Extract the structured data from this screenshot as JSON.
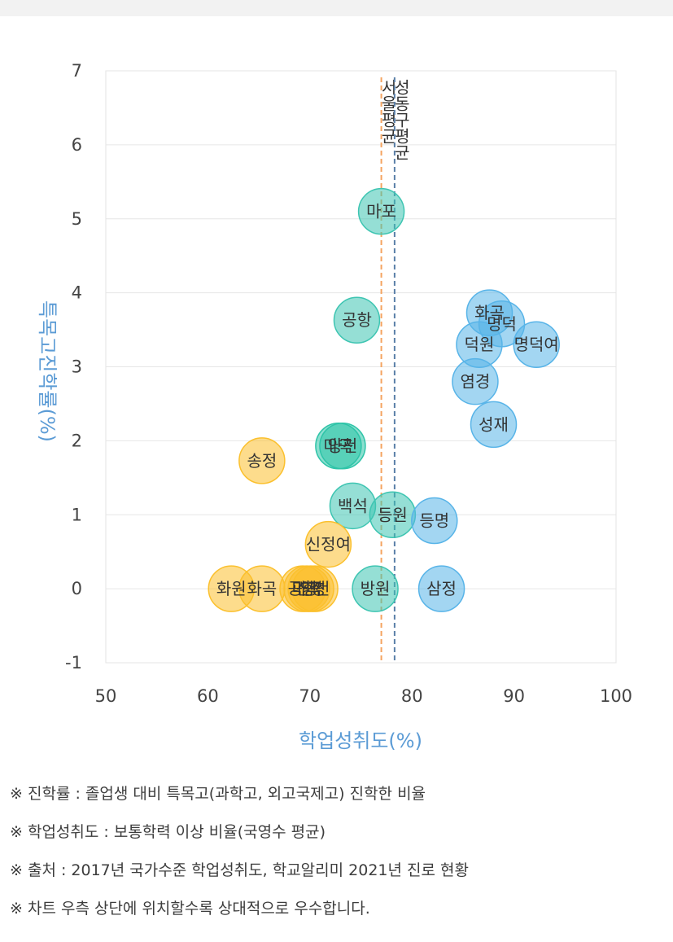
{
  "chart_data": {
    "type": "scatter",
    "xlabel": "학업성취도(%)",
    "ylabel": "특목고진학률(%)",
    "xlim": [
      50,
      100
    ],
    "ylim": [
      -1,
      7
    ],
    "xticks": [
      "50",
      "60",
      "70",
      "80",
      "90",
      "100"
    ],
    "yticks": [
      "-1",
      "0",
      "1",
      "2",
      "3",
      "4",
      "5",
      "6",
      "7"
    ],
    "grid": "horizontal",
    "reference_lines": [
      {
        "label": "서울평균",
        "x": 77,
        "color": "#f4a460"
      },
      {
        "label": "성동구평균",
        "x": 78.3,
        "color": "#5a7fa8"
      }
    ],
    "points": [
      {
        "label": "마포",
        "x": 77,
        "y": 5.1,
        "color": "#3ec5b2"
      },
      {
        "label": "공항",
        "x": 74.6,
        "y": 3.63,
        "color": "#3ec5b2"
      },
      {
        "label": "화곡",
        "x": 87.6,
        "y": 3.73,
        "color": "#58b4e8"
      },
      {
        "label": "명덕",
        "x": 88.8,
        "y": 3.58,
        "color": "#58b4e8"
      },
      {
        "label": "덕원",
        "x": 86.6,
        "y": 3.3,
        "color": "#58b4e8"
      },
      {
        "label": "명덕여",
        "x": 92.2,
        "y": 3.3,
        "color": "#58b4e8"
      },
      {
        "label": "염경",
        "x": 86.2,
        "y": 2.8,
        "color": "#58b4e8"
      },
      {
        "label": "성재",
        "x": 88,
        "y": 2.22,
        "color": "#58b4e8"
      },
      {
        "label": "마곡",
        "x": 72.8,
        "y": 1.93,
        "color": "#2ec4a8"
      },
      {
        "label": "양천",
        "x": 73.2,
        "y": 1.93,
        "color": "#2ec4a8"
      },
      {
        "label": "송정",
        "x": 65.3,
        "y": 1.73,
        "color": "#fbc02d"
      },
      {
        "label": "백석",
        "x": 74.2,
        "y": 1.12,
        "color": "#3ec5b2"
      },
      {
        "label": "등원",
        "x": 78.1,
        "y": 1.0,
        "color": "#3ec5b2"
      },
      {
        "label": "등명",
        "x": 82.2,
        "y": 0.92,
        "color": "#58b4e8"
      },
      {
        "label": "신정여",
        "x": 71.8,
        "y": 0.6,
        "color": "#fbc02d"
      },
      {
        "label": "화원",
        "x": 62.3,
        "y": 0.0,
        "color": "#fbc02d"
      },
      {
        "label": "화곡",
        "x": 65.3,
        "y": 0.0,
        "color": "#fbc02d"
      },
      {
        "label": "공항",
        "x": 69.3,
        "y": 0.0,
        "color": "#fbc02d"
      },
      {
        "label": "마곡",
        "x": 69.7,
        "y": 0.0,
        "color": "#fbc02d"
      },
      {
        "label": "신정",
        "x": 70.1,
        "y": 0.0,
        "color": "#fbc02d"
      },
      {
        "label": "양천",
        "x": 70.5,
        "y": 0.0,
        "color": "#fbc02d"
      },
      {
        "label": "방원",
        "x": 76.4,
        "y": 0.0,
        "color": "#3ec5b2"
      },
      {
        "label": "삼정",
        "x": 82.9,
        "y": 0.0,
        "color": "#58b4e8"
      }
    ]
  },
  "notes": [
    "※ 진학률 : 졸업생 대비 특목고(과학고, 외고국제고) 진학한 비율",
    "※ 학업성취도 : 보통학력 이상 비율(국영수 평균)",
    "※ 출처 : 2017년 국가수준 학업성취도, 학교알리미 2021년 진로 현황",
    "※ 차트 우측 상단에 위치할수록 상대적으로 우수합니다."
  ]
}
